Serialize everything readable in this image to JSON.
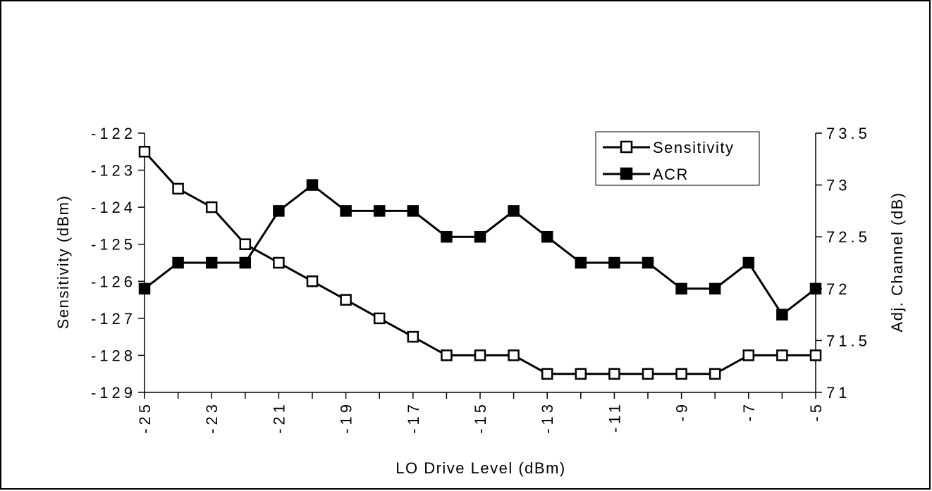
{
  "chart_data": {
    "type": "line",
    "title": "",
    "xlabel": "LO Drive Level (dBm)",
    "ylabel": "Sensitivity (dBm)",
    "y2label": "Adj. Channel (dB)",
    "x": [
      -25,
      -24,
      -23,
      -22,
      -21,
      -20,
      -19,
      -18,
      -17,
      -16,
      -15,
      -14,
      -13,
      -12,
      -11,
      -10,
      -9,
      -8,
      -7,
      -6,
      -5
    ],
    "x_tick_labels": [
      "-25",
      "-23",
      "-21",
      "-19",
      "-17",
      "-15",
      "-13",
      "-11",
      "-9",
      "-7",
      "-5"
    ],
    "y_tick_labels": [
      "-122",
      "-123",
      "-124",
      "-125",
      "-126",
      "-127",
      "-128",
      "-129"
    ],
    "y2_tick_labels": [
      "73.5",
      "73",
      "72.5",
      "72",
      "71.5",
      "71"
    ],
    "xlim": [
      -25,
      -5
    ],
    "ylim": [
      -129,
      -122
    ],
    "y2lim": [
      71,
      73.5
    ],
    "grid": false,
    "legend_position": "top-right",
    "series": [
      {
        "name": "Sensitivity",
        "axis": "left",
        "marker": "open-square",
        "values": [
          -122.5,
          -123.5,
          -124,
          -125,
          -125.5,
          -126,
          -126.5,
          -127,
          -127.5,
          -128,
          -128,
          -128,
          -128.5,
          -128.5,
          -128.5,
          -128.5,
          -128.5,
          -128.5,
          -128,
          -128,
          -128
        ]
      },
      {
        "name": "ACR",
        "axis": "right",
        "marker": "filled-square",
        "values": [
          72,
          72.25,
          72.25,
          72.25,
          72.75,
          73,
          72.75,
          72.75,
          72.75,
          72.5,
          72.5,
          72.75,
          72.5,
          72.25,
          72.25,
          72.25,
          72,
          72,
          72.25,
          71.75,
          72
        ]
      }
    ]
  }
}
